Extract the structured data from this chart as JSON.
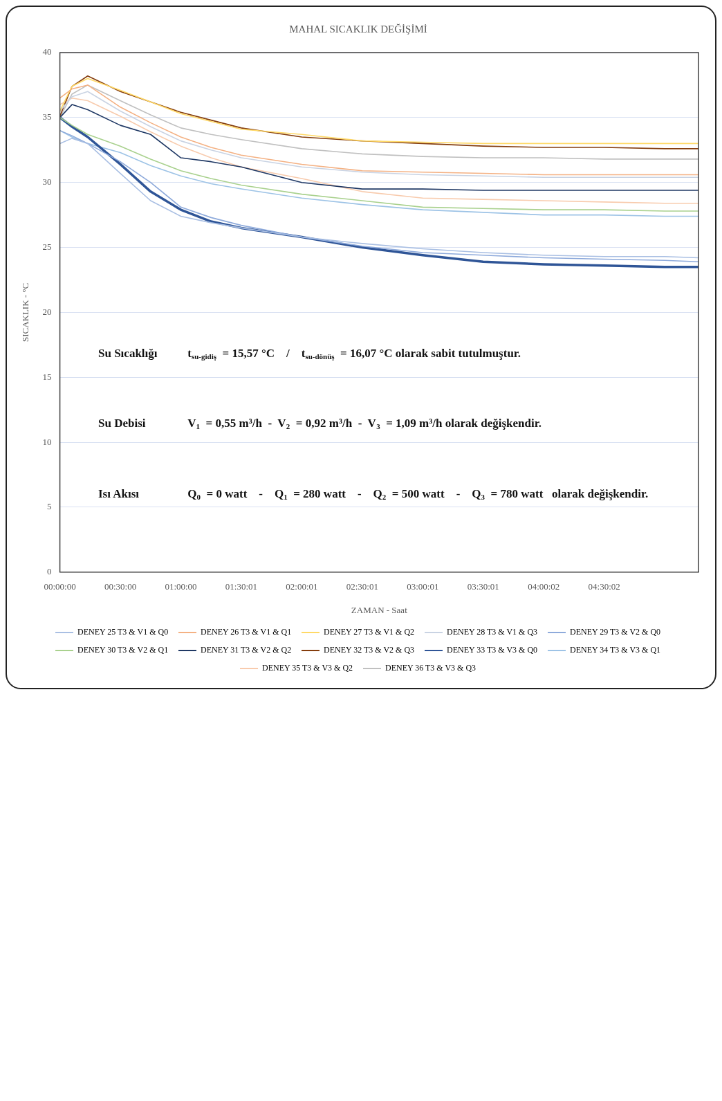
{
  "chart_data": {
    "type": "line",
    "title": "MAHAL SICAKLIK DEĞİŞİMİ",
    "xlabel": "ZAMAN - Saat",
    "ylabel": "SICAKLIK - °C",
    "x": [
      0,
      0.1,
      0.23,
      0.5,
      0.75,
      1,
      1.25,
      1.5,
      2,
      2.5,
      3,
      3.5,
      4,
      4.5,
      5,
      5.28
    ],
    "xlim": [
      0,
      5.28
    ],
    "xticks": [
      {
        "value": 0,
        "label": "00:00:00"
      },
      {
        "value": 0.5,
        "label": "00:30:00"
      },
      {
        "value": 1,
        "label": "01:00:00"
      },
      {
        "value": 1.5003,
        "label": "01:30:01"
      },
      {
        "value": 2.0003,
        "label": "02:00:01"
      },
      {
        "value": 2.5003,
        "label": "02:30:01"
      },
      {
        "value": 3.0003,
        "label": "03:00:01"
      },
      {
        "value": 3.5003,
        "label": "03:30:01"
      },
      {
        "value": 4.0006,
        "label": "04:00:02"
      },
      {
        "value": 4.5006,
        "label": "04:30:02"
      }
    ],
    "ylim": [
      0,
      40
    ],
    "yticks": [
      0,
      5,
      10,
      15,
      20,
      25,
      30,
      35,
      40
    ],
    "grid": "y",
    "legend": "bottom",
    "marker": "none",
    "line_style": "solid",
    "series": [
      {
        "name": "DENEY 25 T3 & V1 & Q0",
        "color": "#a9bfe3",
        "values": [
          33.0,
          33.4,
          33.0,
          30.7,
          28.6,
          27.4,
          26.9,
          26.5,
          25.8,
          25.3,
          24.9,
          24.6,
          24.4,
          24.3,
          24.3,
          24.2
        ]
      },
      {
        "name": "DENEY 26 T3 & V1 & Q1",
        "color": "#f4b183",
        "values": [
          36.5,
          37.2,
          37.5,
          35.8,
          34.6,
          33.5,
          32.7,
          32.1,
          31.4,
          30.9,
          30.8,
          30.7,
          30.6,
          30.6,
          30.6,
          30.6
        ]
      },
      {
        "name": "DENEY 27 T3 & V1 & Q2",
        "color": "#ffd966",
        "values": [
          35.5,
          37.4,
          38.0,
          37.1,
          36.2,
          35.3,
          34.7,
          34.1,
          33.7,
          33.2,
          33.1,
          33.0,
          33.0,
          33.0,
          33.0,
          33.0
        ]
      },
      {
        "name": "DENEY 28 T3 & V1 & Q3",
        "color": "#c9d3e3",
        "values": [
          35.5,
          36.6,
          37.0,
          35.5,
          34.3,
          33.2,
          32.5,
          31.9,
          31.2,
          30.8,
          30.6,
          30.5,
          30.4,
          30.4,
          30.4,
          30.4
        ]
      },
      {
        "name": "DENEY 29 T3 & V2 & Q0",
        "color": "#8eaadb",
        "values": [
          34.0,
          33.6,
          33.0,
          31.6,
          30.0,
          28.1,
          27.3,
          26.7,
          25.8,
          25.1,
          24.6,
          24.4,
          24.2,
          24.1,
          24.0,
          23.9
        ]
      },
      {
        "name": "DENEY 30 T3 & V2 & Q1",
        "color": "#a9d18e",
        "values": [
          35.0,
          34.4,
          33.7,
          32.8,
          31.8,
          30.9,
          30.3,
          29.8,
          29.1,
          28.6,
          28.1,
          28.0,
          27.9,
          27.9,
          27.8,
          27.8
        ]
      },
      {
        "name": "DENEY 31 T3 & V2 & Q2",
        "color": "#1f3864",
        "values": [
          35.0,
          36.0,
          35.6,
          34.4,
          33.7,
          31.9,
          31.6,
          31.2,
          30.0,
          29.5,
          29.5,
          29.4,
          29.4,
          29.4,
          29.4,
          29.4
        ]
      },
      {
        "name": "DENEY 32 T3 & V2 & Q3",
        "color": "#843c0c",
        "values": [
          35.1,
          37.4,
          38.2,
          37.0,
          36.2,
          35.4,
          34.8,
          34.2,
          33.5,
          33.2,
          33.0,
          32.8,
          32.7,
          32.7,
          32.6,
          32.6
        ]
      },
      {
        "name": "DENEY 33 T3 & V3 & Q0",
        "color": "#2f5597",
        "values": [
          35.0,
          34.3,
          33.5,
          31.4,
          29.3,
          27.9,
          27.0,
          26.5,
          25.8,
          25.0,
          24.4,
          23.9,
          23.7,
          23.6,
          23.5,
          23.5
        ]
      },
      {
        "name": "DENEY 34 T3 & V3 & Q1",
        "color": "#9dc3e6",
        "values": [
          34.0,
          33.5,
          33.0,
          32.3,
          31.3,
          30.5,
          29.9,
          29.5,
          28.8,
          28.3,
          27.9,
          27.7,
          27.5,
          27.5,
          27.4,
          27.4
        ]
      },
      {
        "name": "DENEY 35 T3 & V3 & Q2",
        "color": "#f8cbad",
        "values": [
          36.0,
          36.5,
          36.3,
          35.1,
          33.9,
          32.8,
          31.9,
          31.2,
          30.3,
          29.3,
          28.8,
          28.7,
          28.6,
          28.5,
          28.4,
          28.4
        ]
      },
      {
        "name": "DENEY 36 T3 & V3 & Q3",
        "color": "#c0c0c0",
        "values": [
          35.0,
          36.8,
          37.5,
          36.3,
          35.2,
          34.2,
          33.7,
          33.3,
          32.6,
          32.2,
          32.0,
          31.9,
          31.9,
          31.8,
          31.8,
          31.8
        ]
      }
    ],
    "annotations": [
      "Su Sıcaklığı",
      "t$_{su-gidiş}$ = 15,57 °C    /    t$_{su-dönüş}$ = 16,07 °C olarak sabit tutulmuştur.",
      "Su Debisi",
      "V$_{1}$ = 0,55 m³/h  -  V$_{2}$ = 0,92 m³/h  -  V$_{3}$ = 1,09 m³/h olarak değişkendir.",
      "Isı Akısı",
      "Q$_{0}$ = 0 watt    -    Q$_{1}$ = 280 watt    -    Q$_{2}$ = 500 watt    -    Q$_{3}$ = 780 watt   olarak değişkendir."
    ]
  }
}
